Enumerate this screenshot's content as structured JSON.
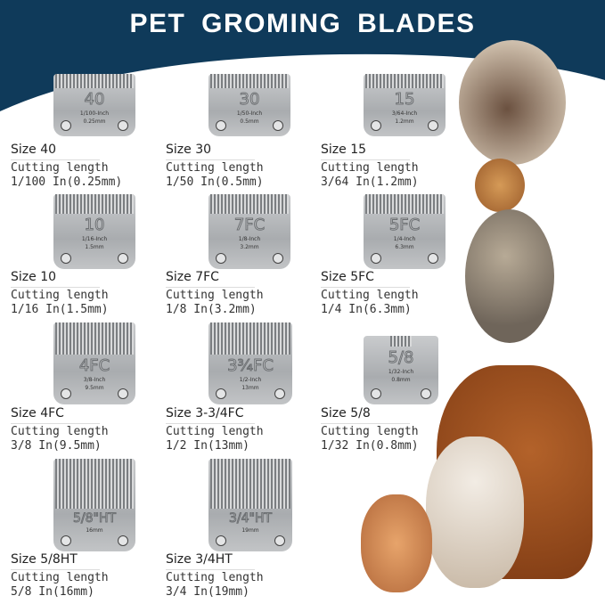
{
  "title": "PET GROMING BLADES",
  "cutting_label": "Cutting length",
  "blades": [
    {
      "size": "Size 40",
      "number": "40",
      "inch": "1/100-Inch",
      "mm": "0.25mm",
      "cutting": "1/100 In(0.25mm)"
    },
    {
      "size": "Size 30",
      "number": "30",
      "inch": "1/50-Inch",
      "mm": "0.5mm",
      "cutting": "1/50 In(0.5mm)"
    },
    {
      "size": "Size 15",
      "number": "15",
      "inch": "3/64-Inch",
      "mm": "1.2mm",
      "cutting": "3/64 In(1.2mm)"
    },
    {
      "size": "Size 10",
      "number": "10",
      "inch": "1/16-Inch",
      "mm": "1.5mm",
      "cutting": "1/16 In(1.5mm)"
    },
    {
      "size": "Size 7FC",
      "number": "7FC",
      "inch": "1/8-Inch",
      "mm": "3.2mm",
      "cutting": "1/8 In(3.2mm)"
    },
    {
      "size": "Size 5FC",
      "number": "5FC",
      "inch": "1/4-Inch",
      "mm": "6.3mm",
      "cutting": "1/4 In(6.3mm)"
    },
    {
      "size": "Size 4FC",
      "number": "4FC",
      "inch": "3/8-Inch",
      "mm": "9.5mm",
      "cutting": "3/8 In(9.5mm)"
    },
    {
      "size": "Size 3-3/4FC",
      "number": "3¾FC",
      "inch": "1/2-Inch",
      "mm": "13mm",
      "cutting": "1/2 In(13mm)"
    },
    {
      "size": "Size 5/8",
      "number": "5/8",
      "inch": "1/32-Inch",
      "mm": "0.8mm",
      "cutting": "1/32 In(0.8mm)"
    },
    {
      "size": "Size 5/8HT",
      "number": "5/8\"HT",
      "inch": "",
      "mm": "16mm",
      "cutting": "5/8 In(16mm)"
    },
    {
      "size": "Size 3/4HT",
      "number": "3/4\"HT",
      "inch": "",
      "mm": "19mm",
      "cutting": "3/4 In(19mm)"
    }
  ]
}
